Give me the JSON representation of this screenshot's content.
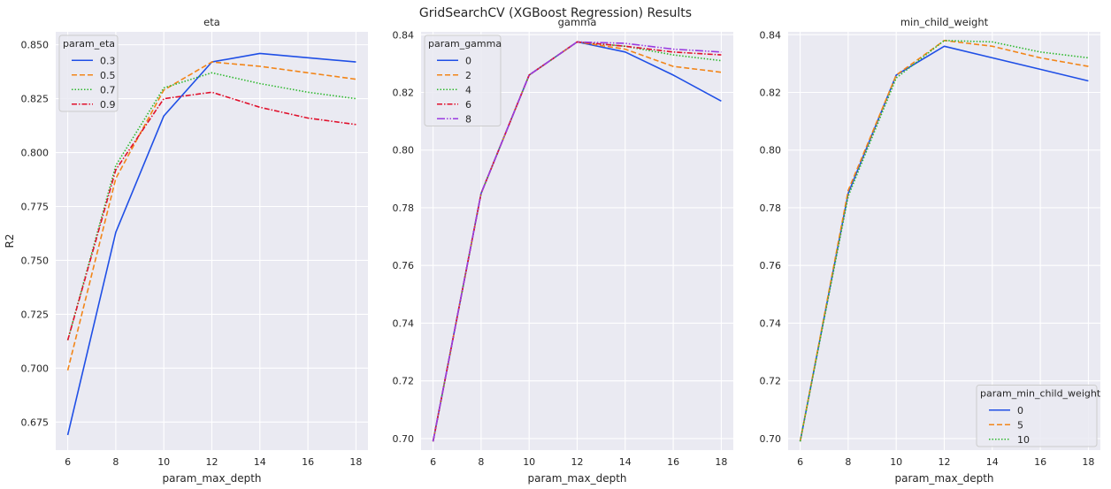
{
  "figure": {
    "suptitle": "GridSearchCV (XGBoost Regression) Results"
  },
  "chart_data": [
    {
      "type": "line",
      "title": "eta",
      "xlabel": "param_max_depth",
      "ylabel": "R2",
      "x": [
        6,
        8,
        10,
        12,
        14,
        16,
        18
      ],
      "xticks": [
        "6",
        "8",
        "10",
        "12",
        "14",
        "16",
        "18"
      ],
      "yticks": [
        "0.675",
        "0.700",
        "0.725",
        "0.750",
        "0.775",
        "0.800",
        "0.825",
        "0.850"
      ],
      "ylim": [
        0.662,
        0.856
      ],
      "grid": true,
      "legend": {
        "title": "param_eta",
        "placement": "top-left"
      },
      "series": [
        {
          "name": "0.3",
          "color": "#1f4fe6",
          "dash": "solid",
          "values": [
            0.669,
            0.763,
            0.817,
            0.842,
            0.846,
            0.844,
            0.842
          ]
        },
        {
          "name": "0.5",
          "color": "#f28518",
          "dash": "dashed",
          "values": [
            0.699,
            0.788,
            0.829,
            0.842,
            0.84,
            0.837,
            0.834
          ]
        },
        {
          "name": "0.7",
          "color": "#2db82d",
          "dash": "dotted",
          "values": [
            0.713,
            0.794,
            0.83,
            0.837,
            0.832,
            0.828,
            0.825
          ]
        },
        {
          "name": "0.9",
          "color": "#e0102c",
          "dash": "dashdot",
          "values": [
            0.713,
            0.792,
            0.825,
            0.828,
            0.821,
            0.816,
            0.813
          ]
        }
      ]
    },
    {
      "type": "line",
      "title": "gamma",
      "xlabel": "param_max_depth",
      "ylabel": "",
      "x": [
        6,
        8,
        10,
        12,
        14,
        16,
        18
      ],
      "xticks": [
        "6",
        "8",
        "10",
        "12",
        "14",
        "16",
        "18"
      ],
      "yticks": [
        "0.70",
        "0.72",
        "0.74",
        "0.76",
        "0.78",
        "0.80",
        "0.82",
        "0.84"
      ],
      "ylim": [
        0.696,
        0.841
      ],
      "grid": true,
      "legend": {
        "title": "param_gamma",
        "placement": "top-left"
      },
      "series": [
        {
          "name": "0",
          "color": "#1f4fe6",
          "dash": "solid",
          "values": [
            0.699,
            0.785,
            0.826,
            0.8375,
            0.834,
            0.826,
            0.817
          ]
        },
        {
          "name": "2",
          "color": "#f28518",
          "dash": "dashed",
          "values": [
            0.699,
            0.785,
            0.826,
            0.8375,
            0.835,
            0.829,
            0.827
          ]
        },
        {
          "name": "4",
          "color": "#2db82d",
          "dash": "dotted",
          "values": [
            0.699,
            0.785,
            0.826,
            0.8375,
            0.836,
            0.833,
            0.831
          ]
        },
        {
          "name": "6",
          "color": "#e0102c",
          "dash": "dashdot",
          "values": [
            0.699,
            0.785,
            0.826,
            0.8375,
            0.836,
            0.834,
            0.833
          ]
        },
        {
          "name": "8",
          "color": "#9a3be0",
          "dash": "longdashdot",
          "values": [
            0.699,
            0.785,
            0.826,
            0.8375,
            0.837,
            0.835,
            0.834
          ]
        }
      ]
    },
    {
      "type": "line",
      "title": "min_child_weight",
      "xlabel": "param_max_depth",
      "ylabel": "",
      "x": [
        6,
        8,
        10,
        12,
        14,
        16,
        18
      ],
      "xticks": [
        "6",
        "8",
        "10",
        "12",
        "14",
        "16",
        "18"
      ],
      "yticks": [
        "0.70",
        "0.72",
        "0.74",
        "0.76",
        "0.78",
        "0.80",
        "0.82",
        "0.84"
      ],
      "ylim": [
        0.696,
        0.841
      ],
      "grid": true,
      "legend": {
        "title": "param_min_child_weight",
        "placement": "bottom-right"
      },
      "series": [
        {
          "name": "0",
          "color": "#1f4fe6",
          "dash": "solid",
          "values": [
            0.699,
            0.785,
            0.826,
            0.836,
            0.832,
            0.828,
            0.824
          ]
        },
        {
          "name": "5",
          "color": "#f28518",
          "dash": "dashed",
          "values": [
            0.699,
            0.786,
            0.826,
            0.838,
            0.836,
            0.832,
            0.829
          ]
        },
        {
          "name": "10",
          "color": "#2db82d",
          "dash": "dotted",
          "values": [
            0.699,
            0.784,
            0.825,
            0.838,
            0.8375,
            0.834,
            0.832
          ]
        }
      ]
    }
  ]
}
